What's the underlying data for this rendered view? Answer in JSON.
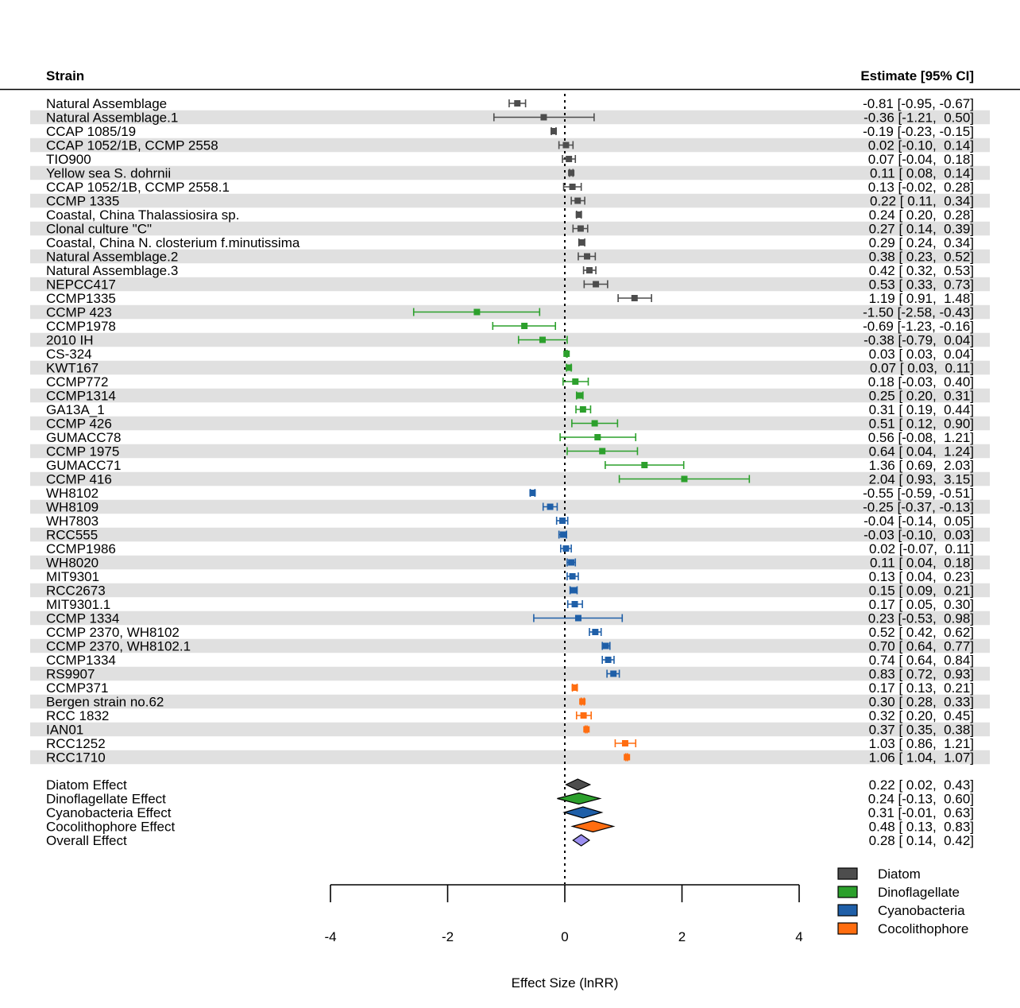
{
  "chart_data": {
    "type": "forest",
    "headers": {
      "left": "Strain",
      "right": "Estimate [95% CI]"
    },
    "xlabel": "Effect Size (lnRR)",
    "xlim": [
      -4,
      4
    ],
    "xticks": [
      "-4",
      "-2",
      "0",
      "2",
      "4"
    ],
    "reference_line": 0,
    "groups": [
      {
        "name": "Diatom",
        "color": "#4d4d4d",
        "key": "diatom"
      },
      {
        "name": "Dinoflagellate",
        "color": "#2ca02c",
        "key": "dino"
      },
      {
        "name": "Cyanobacteria",
        "color": "#1f5fa8",
        "key": "cyano"
      },
      {
        "name": "Cocolithophore",
        "color": "#ff6d10",
        "key": "cocco"
      }
    ],
    "studies": [
      {
        "label": "Natural Assemblage",
        "group": "diatom",
        "est": -0.81,
        "lo": -0.95,
        "hi": -0.67,
        "text": "-0.81 [-0.95, -0.67]"
      },
      {
        "label": "Natural Assemblage.1",
        "group": "diatom",
        "est": -0.36,
        "lo": -1.21,
        "hi": 0.5,
        "text": "-0.36 [-1.21,  0.50]"
      },
      {
        "label": "CCAP 1085/19",
        "group": "diatom",
        "est": -0.19,
        "lo": -0.23,
        "hi": -0.15,
        "text": "-0.19 [-0.23, -0.15]"
      },
      {
        "label": "CCAP 1052/1B, CCMP 2558",
        "group": "diatom",
        "est": 0.02,
        "lo": -0.1,
        "hi": 0.14,
        "text": "0.02 [-0.10,  0.14]"
      },
      {
        "label": "TIO900",
        "group": "diatom",
        "est": 0.07,
        "lo": -0.04,
        "hi": 0.18,
        "text": "0.07 [-0.04,  0.18]"
      },
      {
        "label": "Yellow sea S. dohrnii",
        "group": "diatom",
        "est": 0.11,
        "lo": 0.08,
        "hi": 0.14,
        "text": "0.11 [ 0.08,  0.14]"
      },
      {
        "label": "CCAP 1052/1B, CCMP 2558.1",
        "group": "diatom",
        "est": 0.13,
        "lo": -0.02,
        "hi": 0.28,
        "text": "0.13 [-0.02,  0.28]"
      },
      {
        "label": "CCMP 1335",
        "group": "diatom",
        "est": 0.22,
        "lo": 0.11,
        "hi": 0.34,
        "text": "0.22 [ 0.11,  0.34]"
      },
      {
        "label": "Coastal, China Thalassiosira sp.",
        "group": "diatom",
        "est": 0.24,
        "lo": 0.2,
        "hi": 0.28,
        "text": "0.24 [ 0.20,  0.28]"
      },
      {
        "label": "Clonal culture \"C\"",
        "group": "diatom",
        "est": 0.27,
        "lo": 0.14,
        "hi": 0.39,
        "text": "0.27 [ 0.14,  0.39]"
      },
      {
        "label": "Coastal, China N. closterium f.minutissima",
        "group": "diatom",
        "est": 0.29,
        "lo": 0.24,
        "hi": 0.34,
        "text": "0.29 [ 0.24,  0.34]"
      },
      {
        "label": "Natural Assemblage.2",
        "group": "diatom",
        "est": 0.38,
        "lo": 0.23,
        "hi": 0.52,
        "text": "0.38 [ 0.23,  0.52]"
      },
      {
        "label": "Natural Assemblage.3",
        "group": "diatom",
        "est": 0.42,
        "lo": 0.32,
        "hi": 0.53,
        "text": "0.42 [ 0.32,  0.53]"
      },
      {
        "label": "NEPCC417",
        "group": "diatom",
        "est": 0.53,
        "lo": 0.33,
        "hi": 0.73,
        "text": "0.53 [ 0.33,  0.73]"
      },
      {
        "label": "CCMP1335",
        "group": "diatom",
        "est": 1.19,
        "lo": 0.91,
        "hi": 1.48,
        "text": "1.19 [ 0.91,  1.48]"
      },
      {
        "label": "CCMP 423",
        "group": "dino",
        "est": -1.5,
        "lo": -2.58,
        "hi": -0.43,
        "text": "-1.50 [-2.58, -0.43]"
      },
      {
        "label": "CCMP1978",
        "group": "dino",
        "est": -0.69,
        "lo": -1.23,
        "hi": -0.16,
        "text": "-0.69 [-1.23, -0.16]"
      },
      {
        "label": "2010 IH",
        "group": "dino",
        "est": -0.38,
        "lo": -0.79,
        "hi": 0.04,
        "text": "-0.38 [-0.79,  0.04]"
      },
      {
        "label": "CS-324",
        "group": "dino",
        "est": 0.03,
        "lo": 0.03,
        "hi": 0.04,
        "text": "0.03 [ 0.03,  0.04]"
      },
      {
        "label": "KWT167",
        "group": "dino",
        "est": 0.07,
        "lo": 0.03,
        "hi": 0.11,
        "text": "0.07 [ 0.03,  0.11]"
      },
      {
        "label": "CCMP772",
        "group": "dino",
        "est": 0.18,
        "lo": -0.03,
        "hi": 0.4,
        "text": "0.18 [-0.03,  0.40]"
      },
      {
        "label": "CCMP1314",
        "group": "dino",
        "est": 0.25,
        "lo": 0.2,
        "hi": 0.31,
        "text": "0.25 [ 0.20,  0.31]"
      },
      {
        "label": "GA13A_1",
        "group": "dino",
        "est": 0.31,
        "lo": 0.19,
        "hi": 0.44,
        "text": "0.31 [ 0.19,  0.44]"
      },
      {
        "label": "CCMP 426",
        "group": "dino",
        "est": 0.51,
        "lo": 0.12,
        "hi": 0.9,
        "text": "0.51 [ 0.12,  0.90]"
      },
      {
        "label": "GUMACC78",
        "group": "dino",
        "est": 0.56,
        "lo": -0.08,
        "hi": 1.21,
        "text": "0.56 [-0.08,  1.21]"
      },
      {
        "label": "CCMP 1975",
        "group": "dino",
        "est": 0.64,
        "lo": 0.04,
        "hi": 1.24,
        "text": "0.64 [ 0.04,  1.24]"
      },
      {
        "label": "GUMACC71",
        "group": "dino",
        "est": 1.36,
        "lo": 0.69,
        "hi": 2.03,
        "text": "1.36 [ 0.69,  2.03]"
      },
      {
        "label": "CCMP 416",
        "group": "dino",
        "est": 2.04,
        "lo": 0.93,
        "hi": 3.15,
        "text": "2.04 [ 0.93,  3.15]"
      },
      {
        "label": "WH8102",
        "group": "cyano",
        "est": -0.55,
        "lo": -0.59,
        "hi": -0.51,
        "text": "-0.55 [-0.59, -0.51]"
      },
      {
        "label": "WH8109",
        "group": "cyano",
        "est": -0.25,
        "lo": -0.37,
        "hi": -0.13,
        "text": "-0.25 [-0.37, -0.13]"
      },
      {
        "label": "WH7803",
        "group": "cyano",
        "est": -0.04,
        "lo": -0.14,
        "hi": 0.05,
        "text": "-0.04 [-0.14,  0.05]"
      },
      {
        "label": "RCC555",
        "group": "cyano",
        "est": -0.03,
        "lo": -0.1,
        "hi": 0.03,
        "text": "-0.03 [-0.10,  0.03]"
      },
      {
        "label": "CCMP1986",
        "group": "cyano",
        "est": 0.02,
        "lo": -0.07,
        "hi": 0.11,
        "text": "0.02 [-0.07,  0.11]"
      },
      {
        "label": "WH8020",
        "group": "cyano",
        "est": 0.11,
        "lo": 0.04,
        "hi": 0.18,
        "text": "0.11 [ 0.04,  0.18]"
      },
      {
        "label": "MIT9301",
        "group": "cyano",
        "est": 0.13,
        "lo": 0.04,
        "hi": 0.23,
        "text": "0.13 [ 0.04,  0.23]"
      },
      {
        "label": "RCC2673",
        "group": "cyano",
        "est": 0.15,
        "lo": 0.09,
        "hi": 0.21,
        "text": "0.15 [ 0.09,  0.21]"
      },
      {
        "label": "MIT9301.1",
        "group": "cyano",
        "est": 0.17,
        "lo": 0.05,
        "hi": 0.3,
        "text": "0.17 [ 0.05,  0.30]"
      },
      {
        "label": "CCMP 1334",
        "group": "cyano",
        "est": 0.23,
        "lo": -0.53,
        "hi": 0.98,
        "text": "0.23 [-0.53,  0.98]"
      },
      {
        "label": "CCMP 2370, WH8102",
        "group": "cyano",
        "est": 0.52,
        "lo": 0.42,
        "hi": 0.62,
        "text": "0.52 [ 0.42,  0.62]"
      },
      {
        "label": "CCMP 2370, WH8102.1",
        "group": "cyano",
        "est": 0.7,
        "lo": 0.64,
        "hi": 0.77,
        "text": "0.70 [ 0.64,  0.77]"
      },
      {
        "label": "CCMP1334",
        "group": "cyano",
        "est": 0.74,
        "lo": 0.64,
        "hi": 0.84,
        "text": "0.74 [ 0.64,  0.84]"
      },
      {
        "label": "RS9907",
        "group": "cyano",
        "est": 0.83,
        "lo": 0.72,
        "hi": 0.93,
        "text": "0.83 [ 0.72,  0.93]"
      },
      {
        "label": "CCMP371",
        "group": "cocco",
        "est": 0.17,
        "lo": 0.13,
        "hi": 0.21,
        "text": "0.17 [ 0.13,  0.21]"
      },
      {
        "label": "Bergen strain no.62",
        "group": "cocco",
        "est": 0.3,
        "lo": 0.28,
        "hi": 0.33,
        "text": "0.30 [ 0.28,  0.33]"
      },
      {
        "label": "RCC 1832",
        "group": "cocco",
        "est": 0.32,
        "lo": 0.2,
        "hi": 0.45,
        "text": "0.32 [ 0.20,  0.45]"
      },
      {
        "label": "IAN01",
        "group": "cocco",
        "est": 0.37,
        "lo": 0.35,
        "hi": 0.38,
        "text": "0.37 [ 0.35,  0.38]"
      },
      {
        "label": "RCC1252",
        "group": "cocco",
        "est": 1.03,
        "lo": 0.86,
        "hi": 1.21,
        "text": "1.03 [ 0.86,  1.21]"
      },
      {
        "label": "RCC1710",
        "group": "cocco",
        "est": 1.06,
        "lo": 1.04,
        "hi": 1.07,
        "text": "1.06 [ 1.04,  1.07]"
      }
    ],
    "summaries": [
      {
        "label": "Diatom Effect",
        "color": "#4d4d4d",
        "est": 0.22,
        "lo": 0.02,
        "hi": 0.43,
        "text": "0.22 [ 0.02,  0.43]"
      },
      {
        "label": "Dinoflagellate Effect",
        "color": "#2ca02c",
        "est": 0.24,
        "lo": -0.13,
        "hi": 0.6,
        "text": "0.24 [-0.13,  0.60]"
      },
      {
        "label": "Cyanobacteria Effect",
        "color": "#1f5fa8",
        "est": 0.31,
        "lo": -0.01,
        "hi": 0.63,
        "text": "0.31 [-0.01,  0.63]"
      },
      {
        "label": "Cocolithophore Effect",
        "color": "#ff6d10",
        "est": 0.48,
        "lo": 0.13,
        "hi": 0.83,
        "text": "0.48 [ 0.13,  0.83]"
      },
      {
        "label": "Overall Effect",
        "color": "#9b8ff0",
        "est": 0.28,
        "lo": 0.14,
        "hi": 0.42,
        "text": "0.28 [ 0.14,  0.42]"
      }
    ],
    "legend": {
      "position": "bottom-right",
      "items": [
        "Diatom",
        "Dinoflagellate",
        "Cyanobacteria",
        "Cocolithophore"
      ]
    }
  }
}
